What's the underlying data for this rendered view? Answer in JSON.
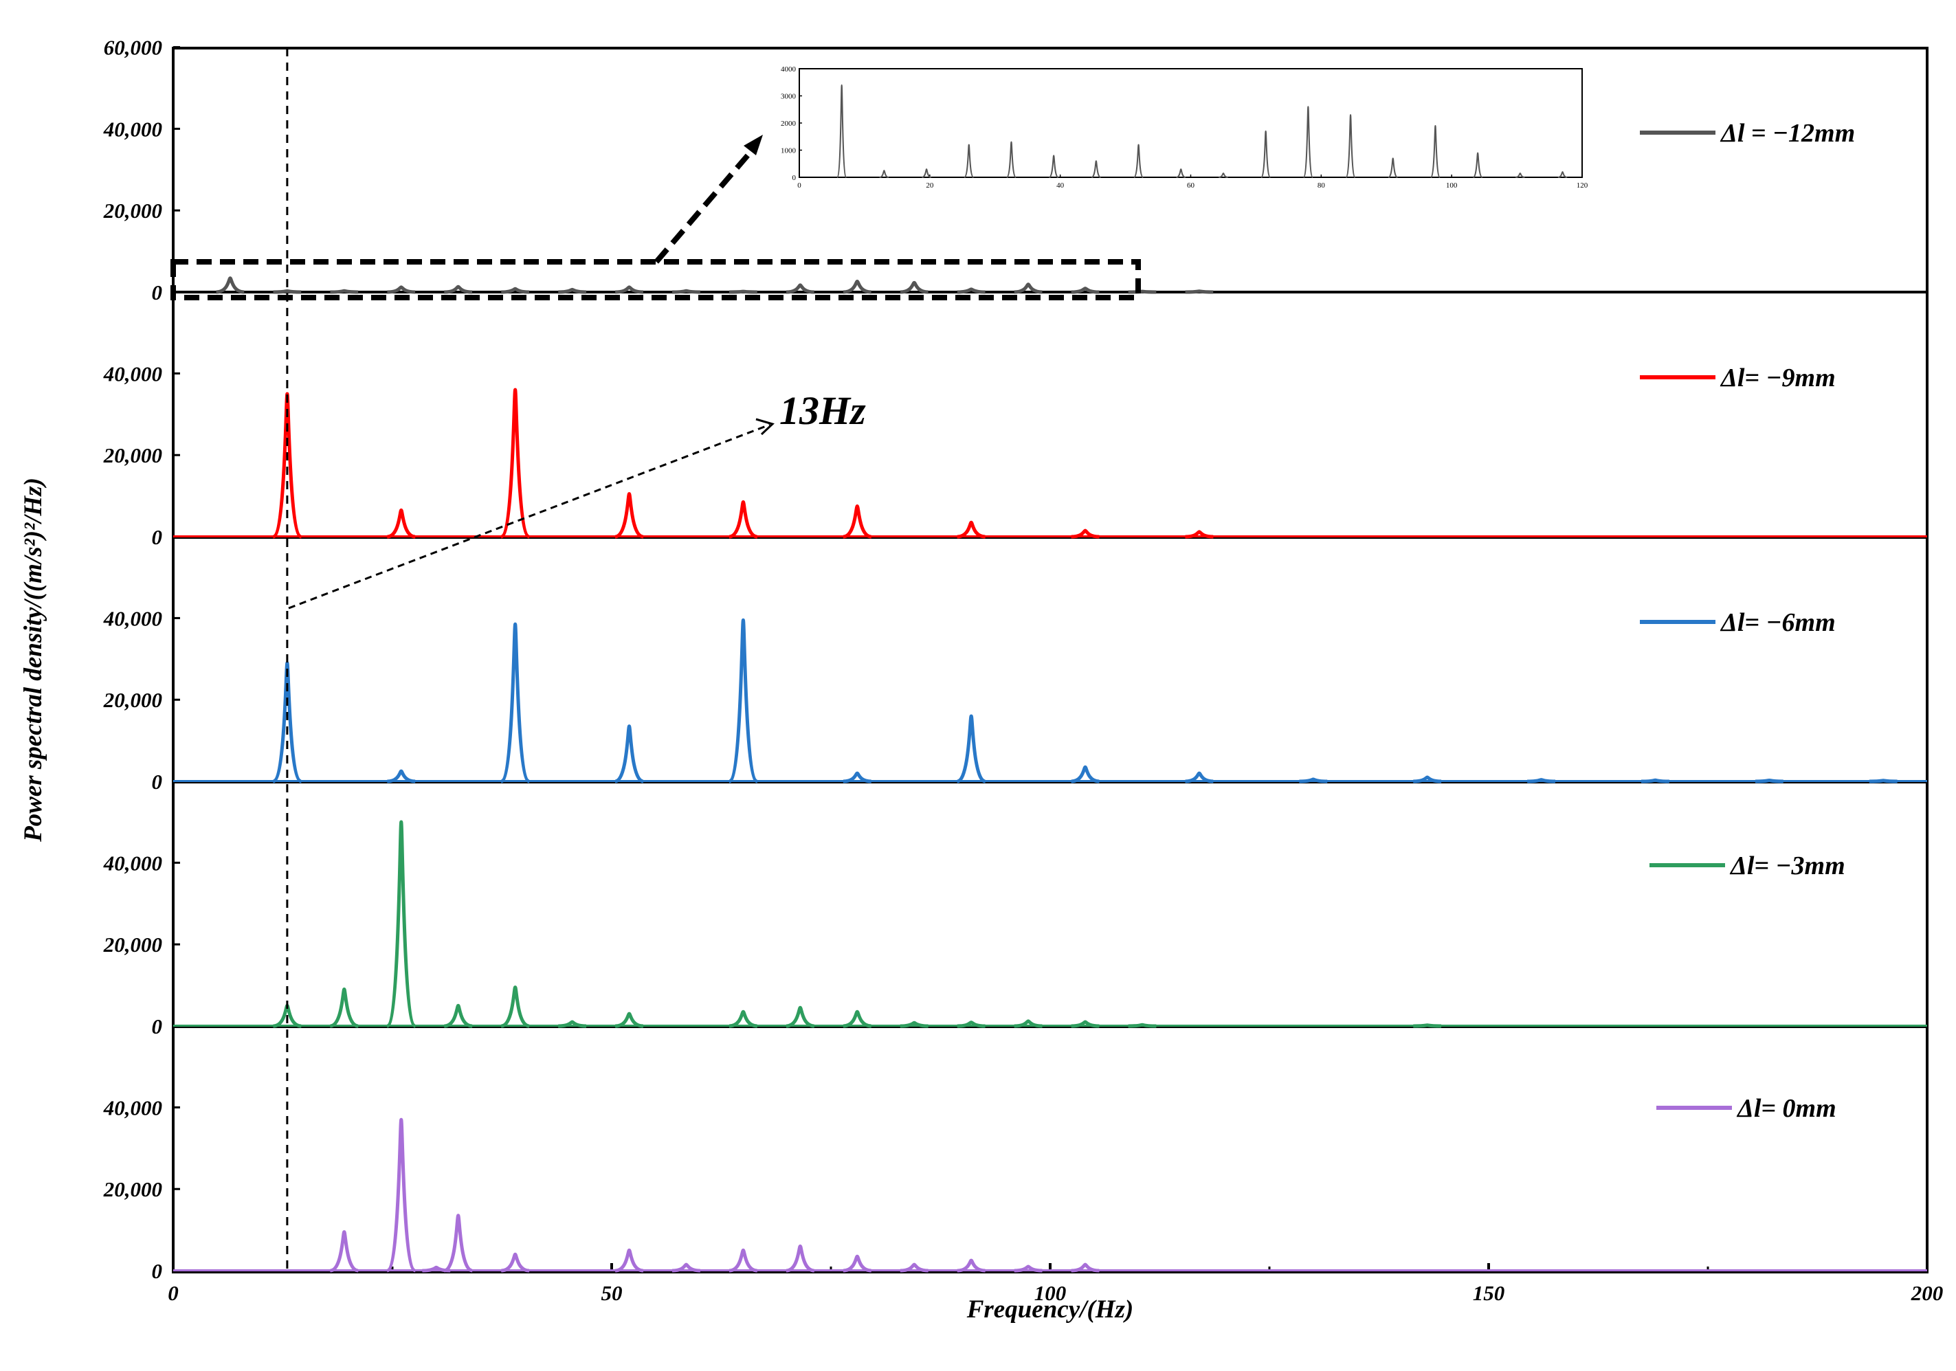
{
  "chart_data": {
    "type": "line",
    "xlabel": "Frequency/(Hz)",
    "ylabel": "Power spectral density/((m/s²)²/Hz)",
    "xlim": [
      0,
      200
    ],
    "x_ticks": [
      "0",
      "50",
      "100",
      "150",
      "200"
    ],
    "ylim_panel": [
      0,
      60000
    ],
    "y_ticks_top": [
      "0",
      "20,000",
      "40,000",
      "60,000"
    ],
    "y_ticks": [
      "0",
      "20,000",
      "40,000"
    ],
    "grid": false,
    "reference_line_x": 13,
    "annotation_label": "13Hz",
    "series": [
      {
        "name": "Δl = −12mm",
        "color": "#555555",
        "peaks": [
          [
            6.5,
            3400
          ],
          [
            13,
            250
          ],
          [
            19.5,
            300
          ],
          [
            26,
            1200
          ],
          [
            32.5,
            1300
          ],
          [
            39,
            800
          ],
          [
            45.5,
            600
          ],
          [
            52,
            1200
          ],
          [
            58.5,
            300
          ],
          [
            65,
            150
          ],
          [
            71.5,
            1700
          ],
          [
            78,
            2600
          ],
          [
            84.5,
            2300
          ],
          [
            91,
            700
          ],
          [
            97.5,
            1900
          ],
          [
            104,
            900
          ],
          [
            110.5,
            150
          ],
          [
            117,
            200
          ]
        ]
      },
      {
        "name": "Δl= −9mm",
        "color": "#ff0000",
        "peaks": [
          [
            13,
            35000
          ],
          [
            26,
            6500
          ],
          [
            39,
            36000
          ],
          [
            52,
            10500
          ],
          [
            65,
            8500
          ],
          [
            78,
            7500
          ],
          [
            91,
            3500
          ],
          [
            104,
            1500
          ],
          [
            117,
            1200
          ]
        ]
      },
      {
        "name": "Δl= −6mm",
        "color": "#2878c8",
        "peaks": [
          [
            13,
            29000
          ],
          [
            26,
            2500
          ],
          [
            39,
            38500
          ],
          [
            52,
            13500
          ],
          [
            65,
            39500
          ],
          [
            78,
            2000
          ],
          [
            91,
            16000
          ],
          [
            104,
            3500
          ],
          [
            117,
            2000
          ],
          [
            130,
            500
          ],
          [
            143,
            1000
          ],
          [
            156,
            400
          ],
          [
            169,
            300
          ],
          [
            182,
            250
          ],
          [
            195,
            200
          ]
        ]
      },
      {
        "name": "Δl= −3mm",
        "color": "#2e9d5e",
        "peaks": [
          [
            13,
            5000
          ],
          [
            19.5,
            9000
          ],
          [
            26,
            50000
          ],
          [
            32.5,
            5000
          ],
          [
            39,
            9500
          ],
          [
            45.5,
            1000
          ],
          [
            52,
            3000
          ],
          [
            65,
            3500
          ],
          [
            71.5,
            4500
          ],
          [
            78,
            3500
          ],
          [
            84.5,
            800
          ],
          [
            91,
            900
          ],
          [
            97.5,
            1200
          ],
          [
            104,
            1000
          ],
          [
            110.5,
            300
          ],
          [
            143,
            200
          ]
        ]
      },
      {
        "name": "Δl= 0mm",
        "color": "#a86fd8",
        "peaks": [
          [
            19.5,
            9500
          ],
          [
            26,
            37000
          ],
          [
            30,
            800
          ],
          [
            32.5,
            13500
          ],
          [
            39,
            4000
          ],
          [
            52,
            5000
          ],
          [
            58.5,
            1500
          ],
          [
            65,
            5000
          ],
          [
            71.5,
            6000
          ],
          [
            78,
            3500
          ],
          [
            84.5,
            1500
          ],
          [
            91,
            2500
          ],
          [
            97.5,
            1000
          ],
          [
            104,
            1500
          ]
        ]
      }
    ],
    "inset": {
      "series": "Δl = −12mm",
      "xlim": [
        0,
        120
      ],
      "ylim": [
        0,
        4000
      ],
      "x_ticks": [
        "0",
        "20",
        "40",
        "60",
        "80",
        "100",
        "120"
      ],
      "y_ticks": [
        "0",
        "1000",
        "2000",
        "3000",
        "4000"
      ]
    }
  }
}
